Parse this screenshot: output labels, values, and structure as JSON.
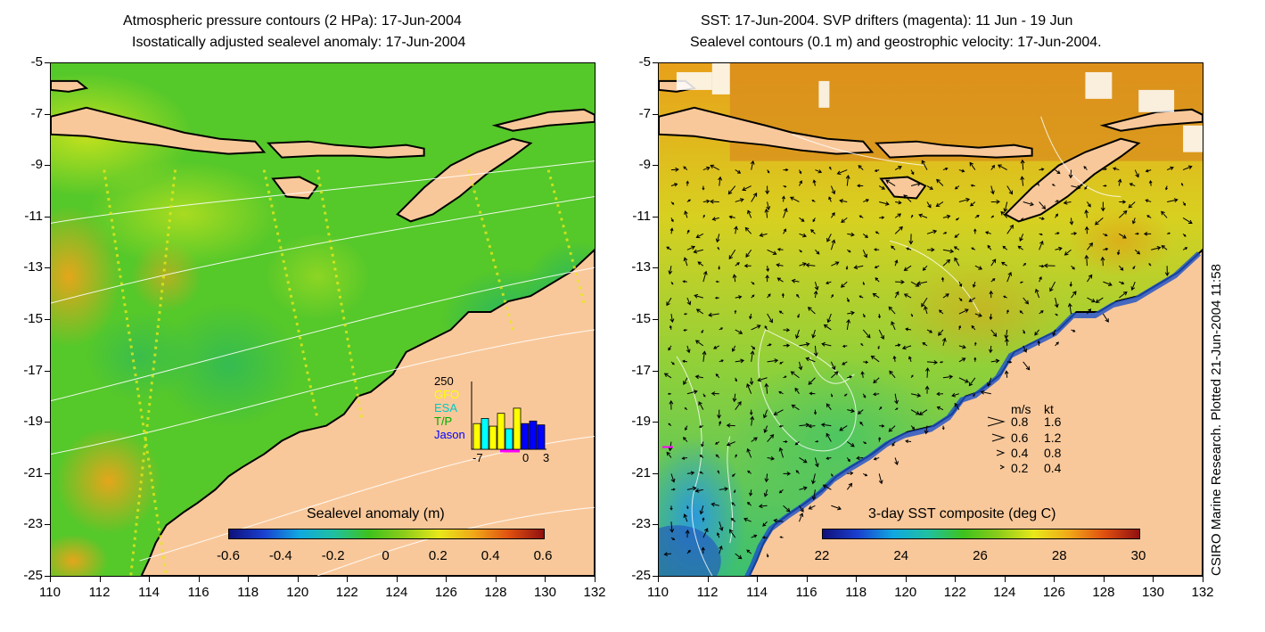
{
  "left_panel": {
    "title_line1": "Atmospheric pressure contours (2 HPa): 17-Jun-2004",
    "title_line2": "Isostatically adjusted sealevel anomaly: 17-Jun-2004",
    "colorbar": {
      "title": "Sealevel anomaly (m)",
      "labels": [
        "-0.6",
        "-0.4",
        "-0.2",
        "0",
        "0.2",
        "0.4",
        "0.6"
      ]
    },
    "histogram": {
      "ymax_label": "250",
      "sources": [
        "GFO",
        "ESA",
        "T/P",
        "Jason"
      ],
      "source_colors": [
        "#ffff00",
        "#00ffff",
        "#00ff00",
        "#0000ff"
      ],
      "x_labels": [
        "-7",
        "0",
        "3"
      ],
      "bars": [
        {
          "day": -6,
          "value": 100,
          "color": "#ffff00"
        },
        {
          "day": -5,
          "value": 120,
          "color": "#00ffff"
        },
        {
          "day": -4,
          "value": 90,
          "color": "#ffff00"
        },
        {
          "day": -3,
          "value": 140,
          "color": "#ffff00"
        },
        {
          "day": -2,
          "value": 80,
          "color": "#00ffff"
        },
        {
          "day": -1,
          "value": 160,
          "color": "#ffff00"
        },
        {
          "day": 0,
          "value": 100,
          "color": "#0000ff"
        },
        {
          "day": 1,
          "value": 110,
          "color": "#0000ff"
        },
        {
          "day": 2,
          "value": 95,
          "color": "#0000ff"
        }
      ]
    }
  },
  "right_panel": {
    "title_line1": "SST: 17-Jun-2004. SVP drifters (magenta): 11 Jun - 19 Jun",
    "title_line2": "Sealevel contours (0.1 m) and geostrophic velocity: 17-Jun-2004.",
    "colorbar": {
      "title": "3-day SST composite (deg C)",
      "labels": [
        "22",
        "24",
        "26",
        "28",
        "30"
      ]
    },
    "speed_legend": {
      "header_ms": "m/s",
      "header_kt": "kt",
      "rows": [
        {
          "ms": "0.8",
          "kt": "1.6"
        },
        {
          "ms": "0.6",
          "kt": "1.2"
        },
        {
          "ms": "0.4",
          "kt": "0.8"
        },
        {
          "ms": "0.2",
          "kt": "0.4"
        }
      ]
    },
    "credit": "CSIRO Marine Research. Plotted 21-Jun-2004 11:58"
  },
  "axes": {
    "lat_labels": [
      "-5",
      "-7",
      "-9",
      "-11",
      "-13",
      "-15",
      "-17",
      "-19",
      "-21",
      "-23",
      "-25"
    ],
    "lon_labels": [
      "110",
      "112",
      "114",
      "116",
      "118",
      "120",
      "122",
      "124",
      "126",
      "128",
      "130",
      "132"
    ]
  },
  "colors": {
    "land": "#f9c89a",
    "coast": "#000000",
    "ocean_left_base": "#3ec21d",
    "ocean_right_base": "#a9d52a",
    "contour": "#ffffff"
  }
}
